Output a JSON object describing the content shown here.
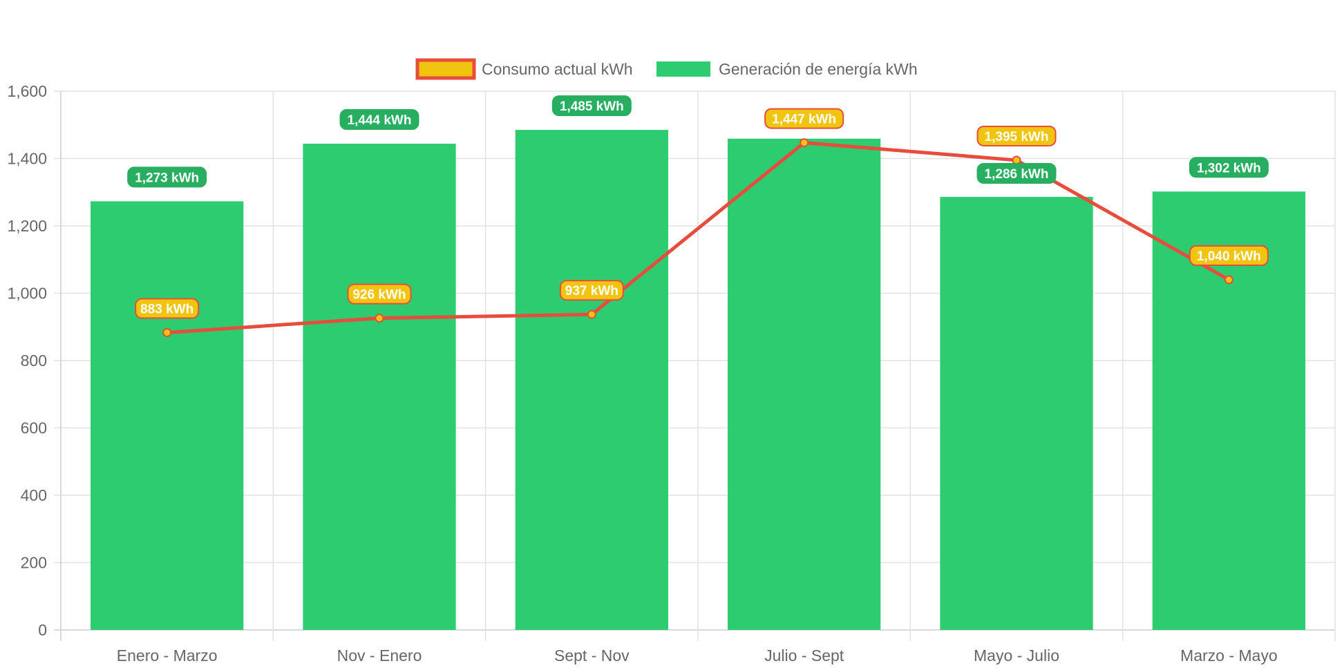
{
  "chart_data": {
    "type": "bar",
    "categories": [
      "Enero - Marzo",
      "Nov - Enero",
      "Sept - Nov",
      "Julio - Sept",
      "Mayo - Julio",
      "Marzo - Mayo"
    ],
    "series": [
      {
        "name": "Consumo actual kWh",
        "type": "line",
        "values": [
          883,
          926,
          937,
          1447,
          1395,
          1040
        ],
        "labels": [
          "883 kWh",
          "926 kWh",
          "937 kWh",
          "1,447 kWh",
          "1,395 kWh",
          "1,040 kWh"
        ],
        "line_color": "#e74c3c",
        "fill_color": "#f1c40f"
      },
      {
        "name": "Generación de energía kWh",
        "type": "bar",
        "values": [
          1273,
          1444,
          1485,
          1459,
          1286,
          1302
        ],
        "labels": [
          "1,273 kWh",
          "1,444 kWh",
          "1,485 kWh",
          "",
          "1,286 kWh",
          "1,302 kWh"
        ],
        "color": "#2ecc71",
        "label_color": "#27ae60"
      }
    ],
    "y_ticks": [
      "0",
      "200",
      "400",
      "600",
      "800",
      "1,000",
      "1,200",
      "1,400",
      "1,600"
    ],
    "ylim": [
      0,
      1600
    ],
    "grid": true,
    "legend_position": "top-center",
    "xlabel": "",
    "ylabel": "",
    "title": ""
  }
}
